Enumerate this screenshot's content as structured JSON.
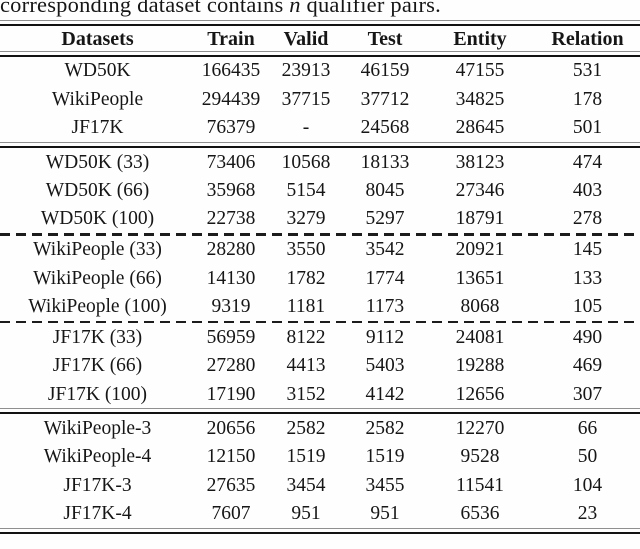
{
  "caption": {
    "prefix": "corresponding dataset contains ",
    "italic_var": "n",
    "suffix": " qualifier pairs."
  },
  "table": {
    "columns": [
      "Datasets",
      "Train",
      "Valid",
      "Test",
      "Entity",
      "Relation"
    ],
    "groups": [
      {
        "separator_after": "solid",
        "rows": [
          [
            "WD50K",
            "166435",
            "23913",
            "46159",
            "47155",
            "531"
          ],
          [
            "WikiPeople",
            "294439",
            "37715",
            "37712",
            "34825",
            "178"
          ],
          [
            "JF17K",
            "76379",
            "-",
            "24568",
            "28645",
            "501"
          ]
        ]
      },
      {
        "separator_after": "dashed",
        "rows": [
          [
            "WD50K (33)",
            "73406",
            "10568",
            "18133",
            "38123",
            "474"
          ],
          [
            "WD50K (66)",
            "35968",
            "5154",
            "8045",
            "27346",
            "403"
          ],
          [
            "WD50K (100)",
            "22738",
            "3279",
            "5297",
            "18791",
            "278"
          ]
        ]
      },
      {
        "separator_after": "dashed",
        "rows": [
          [
            "WikiPeople (33)",
            "28280",
            "3550",
            "3542",
            "20921",
            "145"
          ],
          [
            "WikiPeople (66)",
            "14130",
            "1782",
            "1774",
            "13651",
            "133"
          ],
          [
            "WikiPeople (100)",
            "9319",
            "1181",
            "1173",
            "8068",
            "105"
          ]
        ]
      },
      {
        "separator_after": "solid",
        "rows": [
          [
            "JF17K (33)",
            "56959",
            "8122",
            "9112",
            "24081",
            "490"
          ],
          [
            "JF17K (66)",
            "27280",
            "4413",
            "5403",
            "19288",
            "469"
          ],
          [
            "JF17K (100)",
            "17190",
            "3152",
            "4142",
            "12656",
            "307"
          ]
        ]
      },
      {
        "separator_after": null,
        "rows": [
          [
            "WikiPeople-3",
            "20656",
            "2582",
            "2582",
            "12270",
            "66"
          ],
          [
            "WikiPeople-4",
            "12150",
            "1519",
            "1519",
            "9528",
            "50"
          ],
          [
            "JF17K-3",
            "27635",
            "3454",
            "3455",
            "11541",
            "104"
          ],
          [
            "JF17K-4",
            "7607",
            "951",
            "951",
            "6536",
            "23"
          ]
        ]
      }
    ]
  }
}
